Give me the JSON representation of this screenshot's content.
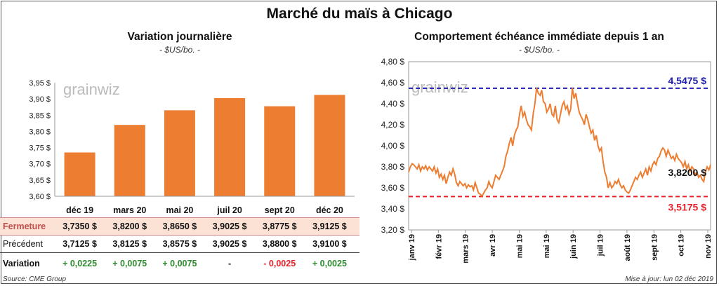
{
  "title": "Marché du maïs à Chicago",
  "source": "Source: CME Group",
  "updated": "Mise à jour: lun 02 déc 2019",
  "watermark": "grainwiz",
  "colors": {
    "bar": "#ED7D31",
    "line": "#ED7D31",
    "resistance": "#1F1FA8",
    "support": "#E8202A",
    "positive": "#2E8B2E",
    "negative": "#E8202A",
    "fermeture_bg": "#FBE2D5"
  },
  "left": {
    "title": "Variation journalière",
    "unit": "- $US/bo. -",
    "table": {
      "rows": [
        {
          "label": "Fermeture",
          "values": [
            "3,7350  $",
            "3,8200  $",
            "3,8650  $",
            "3,9025  $",
            "3,8775  $",
            "3,9125  $"
          ]
        },
        {
          "label": "Précédent",
          "values": [
            "3,7125  $",
            "3,8125  $",
            "3,8575  $",
            "3,9025  $",
            "3,8800  $",
            "3,9100  $"
          ]
        },
        {
          "label": "Variation",
          "values": [
            "+ 0,0225",
            "+ 0,0075",
            "+ 0,0075",
            "-",
            "- 0,0025",
            "+ 0,0025"
          ],
          "signs": [
            "pos",
            "pos",
            "pos",
            "zero",
            "neg",
            "pos"
          ]
        }
      ]
    }
  },
  "right": {
    "title": "Comportement  échéance immédiate depuis 1 an",
    "unit": "- $US/bo. -",
    "resistance_label": "4,5475 $",
    "support_label": "3,5175 $",
    "last_label": "3,8200 $"
  },
  "chart_data": [
    {
      "type": "bar",
      "categories": [
        "déc 19",
        "mars 20",
        "mai 20",
        "juil 20",
        "sept 20",
        "déc 20"
      ],
      "values": [
        3.735,
        3.82,
        3.865,
        3.9025,
        3.8775,
        3.9125
      ],
      "ylim": [
        3.6,
        3.95
      ],
      "yticks": [
        "3,60 $",
        "3,65 $",
        "3,70 $",
        "3,75 $",
        "3,80 $",
        "3,85 $",
        "3,90 $",
        "3,95 $"
      ],
      "grid": false
    },
    {
      "type": "line",
      "ylim": [
        3.2,
        4.8
      ],
      "yticks": [
        "3,20 $",
        "3,40 $",
        "3,60 $",
        "3,80 $",
        "4,00 $",
        "4,20 $",
        "4,40 $",
        "4,60 $",
        "4,80 $"
      ],
      "xticks": [
        "janv 19",
        "févr 19",
        "mars 19",
        "avr 19",
        "mai 19",
        "mai 19",
        "juin 19",
        "juil 19",
        "août 19",
        "sept 19",
        "oct 19",
        "nov 19"
      ],
      "resistance": 4.5475,
      "support": 3.5175,
      "last": 3.82,
      "values": [
        3.75,
        3.8,
        3.83,
        3.82,
        3.8,
        3.78,
        3.82,
        3.76,
        3.8,
        3.78,
        3.81,
        3.77,
        3.8,
        3.78,
        3.76,
        3.8,
        3.74,
        3.78,
        3.7,
        3.73,
        3.68,
        3.72,
        3.64,
        3.7,
        3.75,
        3.72,
        3.78,
        3.73,
        3.65,
        3.62,
        3.66,
        3.64,
        3.62,
        3.64,
        3.6,
        3.63,
        3.61,
        3.62,
        3.58,
        3.65,
        3.6,
        3.55,
        3.54,
        3.52,
        3.55,
        3.58,
        3.6,
        3.66,
        3.62,
        3.6,
        3.66,
        3.72,
        3.7,
        3.68,
        3.72,
        3.76,
        3.8,
        3.9,
        3.95,
        4.02,
        4.08,
        4.0,
        4.1,
        4.15,
        4.18,
        4.3,
        4.38,
        4.28,
        4.32,
        4.25,
        4.2,
        4.18,
        4.15,
        4.3,
        4.4,
        4.55,
        4.5,
        4.48,
        4.53,
        4.42,
        4.4,
        4.32,
        4.35,
        4.4,
        4.3,
        4.28,
        4.38,
        4.25,
        4.22,
        4.3,
        4.38,
        4.42,
        4.35,
        4.38,
        4.3,
        4.35,
        4.55,
        4.45,
        4.5,
        4.4,
        4.32,
        4.28,
        4.25,
        4.2,
        4.3,
        4.25,
        4.18,
        4.12,
        4.15,
        4.05,
        4.1,
        4.0,
        3.95,
        3.98,
        3.85,
        3.75,
        3.7,
        3.6,
        3.65,
        3.6,
        3.62,
        3.66,
        3.64,
        3.68,
        3.63,
        3.6,
        3.62,
        3.58,
        3.56,
        3.55,
        3.58,
        3.62,
        3.66,
        3.7,
        3.68,
        3.72,
        3.75,
        3.7,
        3.74,
        3.78,
        3.72,
        3.8,
        3.76,
        3.82,
        3.85,
        3.82,
        3.88,
        3.9,
        3.95,
        3.98,
        3.96,
        3.9,
        3.96,
        3.92,
        3.88,
        3.9,
        3.86,
        3.92,
        3.88,
        3.86,
        3.84,
        3.8,
        3.85,
        3.78,
        3.82,
        3.76,
        3.8,
        3.78,
        3.72,
        3.75,
        3.7,
        3.72,
        3.68,
        3.66,
        3.75,
        3.8,
        3.77,
        3.82
      ]
    }
  ]
}
